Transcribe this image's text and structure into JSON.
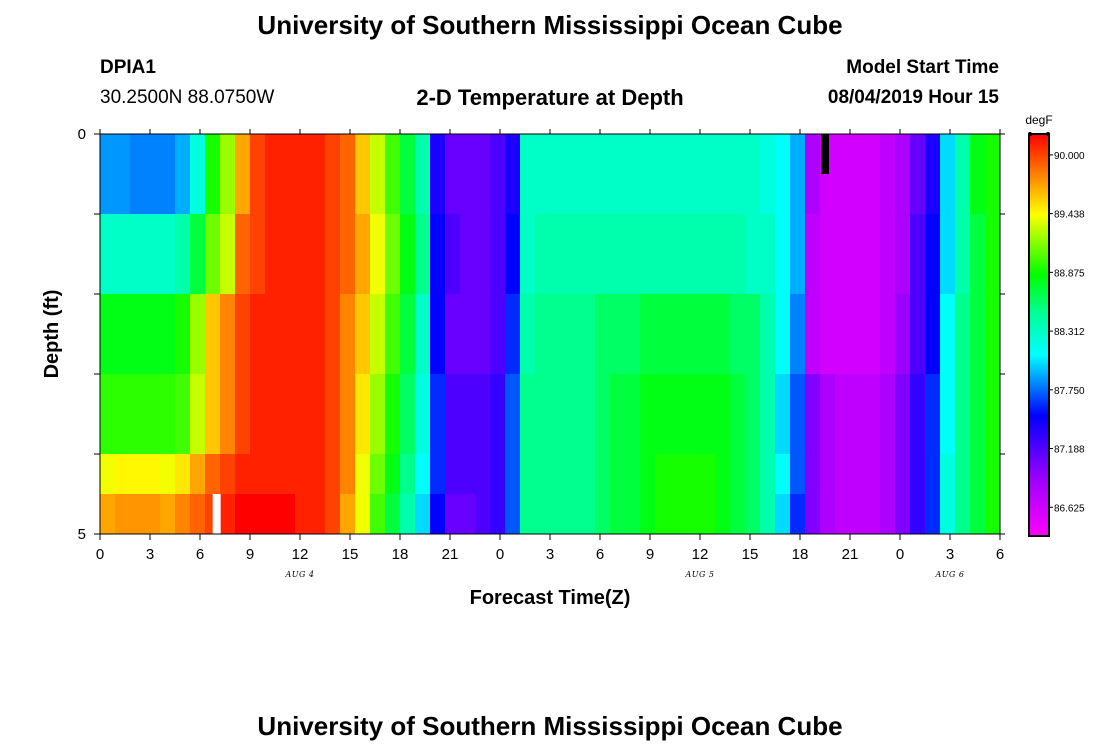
{
  "header": {
    "title": "University of Southern Mississippi Ocean Cube",
    "station": "DPIA1",
    "coords": "30.2500N 88.0750W",
    "subtitle": "2-D Temperature at Depth",
    "model_label": "Model Start Time",
    "model_time": "08/04/2019 Hour 15"
  },
  "footer": {
    "title": "University of Southern Mississippi Ocean Cube"
  },
  "chart_data": {
    "type": "heatmap",
    "title": "2-D Temperature at Depth",
    "xlabel": "Forecast Time(Z)",
    "ylabel": "Depth (ft)",
    "x_tick_labels": [
      "0",
      "3",
      "6",
      "9",
      "12",
      "15",
      "18",
      "21",
      "0",
      "3",
      "6",
      "9",
      "12",
      "15",
      "18",
      "21",
      "0",
      "3",
      "6"
    ],
    "date_labels": [
      {
        "label": "AUG 4",
        "hour": 12
      },
      {
        "label": "AUG 5",
        "hour": 36
      },
      {
        "label": "AUG 6",
        "hour": 51
      }
    ],
    "x_range_hours": [
      0,
      54
    ],
    "y_range_ft": [
      0,
      5
    ],
    "y_tick_labels": [
      "0",
      "5"
    ],
    "colorbar": {
      "unit": "degF",
      "min": 86.35,
      "max": 90.2,
      "tick_labels": [
        "90.000",
        "89.438",
        "88.875",
        "88.312",
        "87.750",
        "87.188",
        "86.625"
      ],
      "tick_values": [
        90.0,
        89.438,
        88.875,
        88.312,
        87.75,
        87.188,
        86.625
      ]
    },
    "rows": [
      {
        "depth_ft": 0.0,
        "values": [
          87.85,
          87.85,
          87.8,
          87.8,
          87.8,
          87.9,
          88.2,
          88.9,
          89.2,
          89.7,
          90.0,
          90.1,
          90.1,
          90.1,
          90.1,
          90.0,
          89.9,
          89.6,
          89.3,
          89.0,
          88.7,
          88.4,
          87.4,
          87.1,
          87.1,
          87.1,
          87.2,
          87.4,
          88.3,
          88.3,
          88.3,
          88.3,
          88.3,
          88.3,
          88.3,
          88.3,
          88.3,
          88.3,
          88.3,
          88.3,
          88.3,
          88.3,
          88.3,
          88.3,
          88.2,
          88.1,
          87.9,
          86.8,
          86.6,
          86.6,
          86.6,
          86.6,
          86.7,
          86.8,
          87.1,
          87.4,
          88.0,
          88.4,
          88.8,
          88.9
        ]
      },
      {
        "depth_ft": 1.0,
        "values": [
          88.3,
          88.3,
          88.3,
          88.3,
          88.3,
          88.4,
          88.7,
          89.1,
          89.3,
          89.9,
          90.0,
          90.1,
          90.1,
          90.1,
          90.1,
          90.0,
          89.9,
          89.7,
          89.4,
          89.1,
          88.8,
          88.5,
          87.5,
          87.2,
          87.1,
          87.1,
          87.2,
          87.5,
          88.3,
          88.4,
          88.4,
          88.4,
          88.4,
          88.4,
          88.4,
          88.4,
          88.4,
          88.4,
          88.4,
          88.4,
          88.4,
          88.4,
          88.4,
          88.3,
          88.3,
          88.1,
          87.9,
          86.7,
          86.6,
          86.6,
          86.6,
          86.6,
          86.7,
          86.8,
          87.2,
          87.5,
          88.0,
          88.4,
          88.7,
          88.9
        ]
      },
      {
        "depth_ft": 2.0,
        "values": [
          88.8,
          88.8,
          88.8,
          88.8,
          88.8,
          88.9,
          89.2,
          89.6,
          89.8,
          90.0,
          90.1,
          90.1,
          90.1,
          90.1,
          90.1,
          90.0,
          89.8,
          89.6,
          89.3,
          89.0,
          88.7,
          88.3,
          87.5,
          87.1,
          87.1,
          87.1,
          87.2,
          87.6,
          88.4,
          88.5,
          88.5,
          88.5,
          88.5,
          88.6,
          88.6,
          88.6,
          88.7,
          88.7,
          88.7,
          88.7,
          88.7,
          88.7,
          88.6,
          88.6,
          88.4,
          88.1,
          87.8,
          86.7,
          86.6,
          86.6,
          86.6,
          86.6,
          86.7,
          86.9,
          87.2,
          87.5,
          88.1,
          88.5,
          88.7,
          88.9
        ]
      },
      {
        "depth_ft": 3.0,
        "values": [
          88.95,
          88.95,
          88.95,
          88.95,
          88.95,
          89.0,
          89.3,
          89.6,
          89.8,
          90.0,
          90.1,
          90.1,
          90.1,
          90.1,
          90.1,
          90.0,
          89.8,
          89.5,
          89.2,
          88.9,
          88.6,
          88.2,
          87.6,
          87.2,
          87.2,
          87.2,
          87.3,
          87.7,
          88.5,
          88.5,
          88.5,
          88.5,
          88.5,
          88.6,
          88.7,
          88.7,
          88.8,
          88.8,
          88.8,
          88.8,
          88.8,
          88.8,
          88.7,
          88.6,
          88.4,
          88.0,
          87.7,
          87.0,
          86.8,
          86.7,
          86.7,
          86.7,
          86.8,
          87.0,
          87.3,
          87.6,
          88.1,
          88.5,
          88.7,
          88.9
        ]
      },
      {
        "depth_ft": 4.0,
        "values": [
          89.4,
          89.45,
          89.45,
          89.45,
          89.4,
          89.5,
          89.7,
          89.9,
          90.0,
          90.1,
          90.1,
          90.1,
          90.1,
          90.1,
          90.1,
          90.0,
          89.8,
          89.4,
          89.1,
          88.8,
          88.5,
          88.1,
          87.6,
          87.2,
          87.2,
          87.2,
          87.3,
          87.7,
          88.5,
          88.5,
          88.5,
          88.5,
          88.5,
          88.6,
          88.7,
          88.7,
          88.8,
          88.9,
          88.9,
          88.9,
          88.9,
          88.8,
          88.7,
          88.6,
          88.4,
          88.1,
          87.7,
          87.0,
          86.8,
          86.7,
          86.7,
          86.7,
          86.8,
          87.0,
          87.3,
          87.6,
          88.2,
          88.5,
          88.7,
          88.9
        ]
      },
      {
        "depth_ft": 4.5,
        "values": [
          89.7,
          89.75,
          89.75,
          89.75,
          89.7,
          89.8,
          89.9,
          90.0,
          90.1,
          90.2,
          90.2,
          90.2,
          90.2,
          90.1,
          90.1,
          90.0,
          89.7,
          89.4,
          89.0,
          88.7,
          88.4,
          88.0,
          87.5,
          87.1,
          87.1,
          87.2,
          87.3,
          87.7,
          88.5,
          88.5,
          88.5,
          88.5,
          88.5,
          88.6,
          88.7,
          88.7,
          88.8,
          88.9,
          88.9,
          88.9,
          88.9,
          88.8,
          88.7,
          88.6,
          88.4,
          88.0,
          87.6,
          87.0,
          86.8,
          86.7,
          86.7,
          86.7,
          86.8,
          87.0,
          87.3,
          87.6,
          88.2,
          88.5,
          88.7,
          88.9
        ]
      }
    ],
    "markers": [
      {
        "kind": "white-bar",
        "hour": 7,
        "depth_from_ft": 4.5,
        "depth_to_ft": 5.0
      },
      {
        "kind": "black-bar",
        "hour": 43.5,
        "depth_from_ft": 0.0,
        "depth_to_ft": 0.5
      }
    ],
    "colors": {
      "magenta": "#ff00ff",
      "purple": "#9d00ff",
      "blue": "#0000ff",
      "cyan": "#00ffff",
      "aqua_green": "#00ff9a",
      "green": "#00ff00",
      "yellow": "#ffff00",
      "orange": "#ff8000",
      "red": "#ff0000"
    }
  }
}
